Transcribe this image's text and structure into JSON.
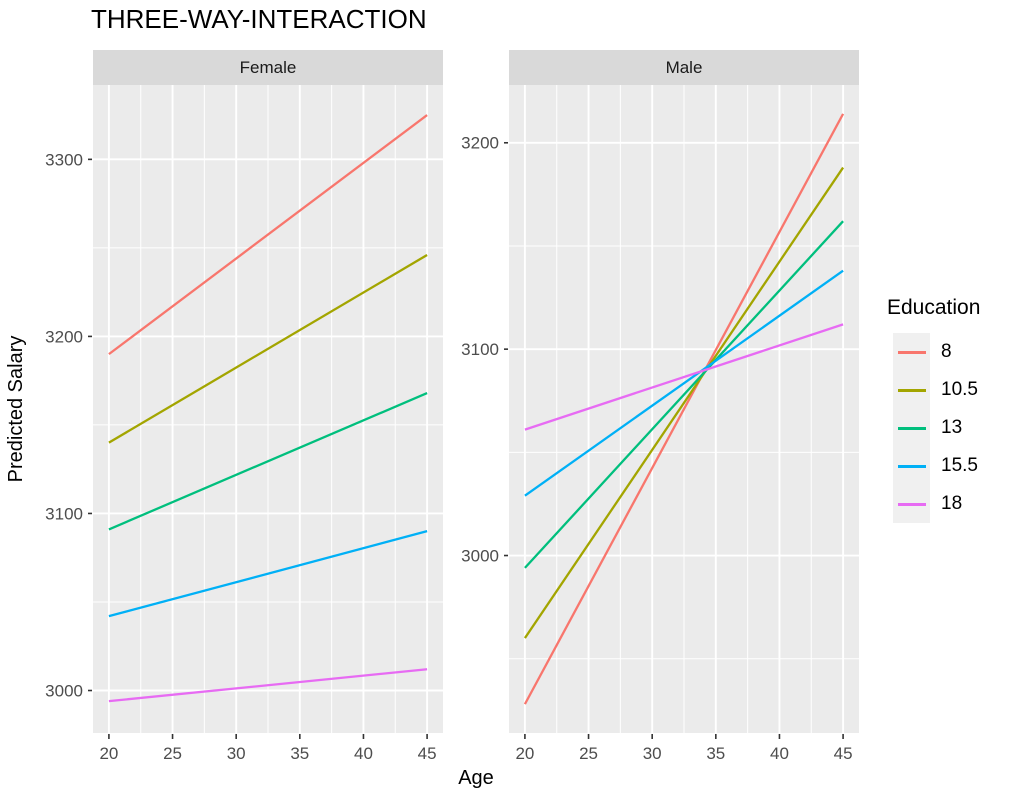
{
  "title": "THREE-WAY-INTERACTION",
  "legend": {
    "title": "Education",
    "items": [
      {
        "label": "8",
        "color": "#F8766D"
      },
      {
        "label": "10.5",
        "color": "#A3A500"
      },
      {
        "label": "13",
        "color": "#00BF7D"
      },
      {
        "label": "15.5",
        "color": "#00B0F6"
      },
      {
        "label": "18",
        "color": "#E76BF3"
      }
    ]
  },
  "chart_data": {
    "type": "line",
    "title": "THREE-WAY-INTERACTION",
    "xlabel": "Age",
    "ylabel": "Predicted Salary",
    "legend_title": "Education",
    "legend_position": "right",
    "grid": true,
    "x": [
      20,
      45
    ],
    "xticks": [
      20,
      25,
      30,
      35,
      40,
      45
    ],
    "xminor": [
      22.5,
      27.5,
      32.5,
      37.5,
      42.5
    ],
    "xlim": [
      18.75,
      46.25
    ],
    "facets": [
      {
        "label": "Female",
        "ylim": [
          2976,
          3342
        ],
        "yticks": [
          3000,
          3100,
          3200,
          3300
        ],
        "yminor": [
          3050,
          3150,
          3250
        ],
        "series": [
          {
            "name": "8",
            "color": "#F8766D",
            "values": [
              3190,
              3325
            ]
          },
          {
            "name": "10.5",
            "color": "#A3A500",
            "values": [
              3140,
              3246
            ]
          },
          {
            "name": "13",
            "color": "#00BF7D",
            "values": [
              3091,
              3168
            ]
          },
          {
            "name": "15.5",
            "color": "#00B0F6",
            "values": [
              3042,
              3090
            ]
          },
          {
            "name": "18",
            "color": "#E76BF3",
            "values": [
              2994,
              3012
            ]
          }
        ]
      },
      {
        "label": "Male",
        "ylim": [
          2914,
          3228
        ],
        "yticks": [
          3000,
          3100,
          3200
        ],
        "yminor": [
          2950,
          3050,
          3150
        ],
        "series": [
          {
            "name": "8",
            "color": "#F8766D",
            "values": [
              2928,
              3214
            ]
          },
          {
            "name": "10.5",
            "color": "#A3A500",
            "values": [
              2960,
              3188
            ]
          },
          {
            "name": "13",
            "color": "#00BF7D",
            "values": [
              2994,
              3162
            ]
          },
          {
            "name": "15.5",
            "color": "#00B0F6",
            "values": [
              3029,
              3138
            ]
          },
          {
            "name": "18",
            "color": "#E76BF3",
            "values": [
              3061,
              3112
            ]
          }
        ]
      }
    ]
  },
  "style": {
    "panel_bg": "#EBEBEB",
    "strip_bg": "#D9D9D9",
    "grid_color": "#FFFFFF",
    "tick_color": "#333333",
    "tick_label_color": "#4D4D4D",
    "text_color": "#000000",
    "strip_text_color": "#1A1A1A",
    "legend_key_bg": "#F0F0F0"
  }
}
